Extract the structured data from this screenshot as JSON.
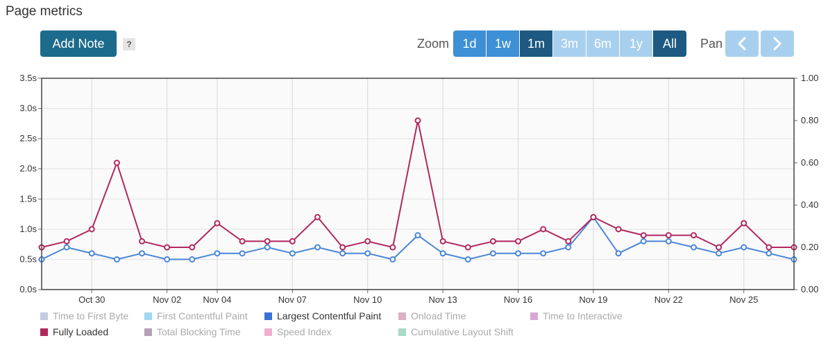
{
  "header": {
    "title": "Page metrics"
  },
  "toolbar": {
    "add_note_label": "Add Note",
    "help_label": "?",
    "zoom_label": "Zoom",
    "zoom_options": [
      {
        "label": "1d",
        "state": "enabled"
      },
      {
        "label": "1w",
        "state": "enabled"
      },
      {
        "label": "1m",
        "state": "selected"
      },
      {
        "label": "3m",
        "state": "disabled"
      },
      {
        "label": "6m",
        "state": "disabled"
      },
      {
        "label": "1y",
        "state": "disabled"
      },
      {
        "label": "All",
        "state": "selected"
      }
    ],
    "pan_label": "Pan",
    "pan_left_icon": "chevron-left-icon",
    "pan_right_icon": "chevron-right-icon"
  },
  "colors": {
    "fully_loaded": "#b0285f",
    "largest_contentful_paint": "#4a86d8",
    "button_dark": "#1d6b8c",
    "zoom_blue": "#3d8fd6",
    "zoom_dark": "#1d5980",
    "zoom_light": "#a8d0ee"
  },
  "chart_data": {
    "type": "line",
    "title": "",
    "xlabel": "",
    "ylabel": "",
    "x_tick_labels": [
      "Oct 30",
      "Nov 02",
      "Nov 04",
      "Nov 07",
      "Nov 10",
      "Nov 13",
      "Nov 16",
      "Nov 19",
      "Nov 22",
      "Nov 25"
    ],
    "y_tick_labels": [
      "0.0s",
      "0.5s",
      "1.0s",
      "1.5s",
      "2.0s",
      "2.5s",
      "3.0s",
      "3.5s"
    ],
    "y2_tick_labels": [
      "0.00",
      "0.20",
      "0.40",
      "0.60",
      "0.80",
      "1.00"
    ],
    "ylim": [
      0,
      3.5
    ],
    "y2lim": [
      0,
      1.0
    ],
    "grid": true,
    "legend_position": "bottom",
    "series": [
      {
        "name": "Fully Loaded",
        "color": "#b0285f",
        "values": [
          0.7,
          0.8,
          1.0,
          2.1,
          0.8,
          0.7,
          0.7,
          1.1,
          0.8,
          0.8,
          0.8,
          1.2,
          0.7,
          0.8,
          0.7,
          2.8,
          0.8,
          0.7,
          0.8,
          0.8,
          1.0,
          0.8,
          1.2,
          1.0,
          0.9,
          0.9,
          0.9,
          0.7,
          1.1,
          0.7,
          0.7
        ]
      },
      {
        "name": "Largest Contentful Paint",
        "color": "#4a86d8",
        "values": [
          0.5,
          0.7,
          0.6,
          0.5,
          0.6,
          0.5,
          0.5,
          0.6,
          0.6,
          0.7,
          0.6,
          0.7,
          0.6,
          0.6,
          0.5,
          0.9,
          0.6,
          0.5,
          0.6,
          0.6,
          0.6,
          0.7,
          1.2,
          0.6,
          0.8,
          0.8,
          0.7,
          0.6,
          0.7,
          0.6,
          0.5
        ]
      }
    ]
  },
  "legend": [
    {
      "label": "Time to First Byte",
      "color": "#c5cbe0",
      "active": false
    },
    {
      "label": "First Contentful Paint",
      "color": "#9fd8f0",
      "active": false
    },
    {
      "label": "Largest Contentful Paint",
      "color": "#3a72d6",
      "active": true
    },
    {
      "label": "Onload Time",
      "color": "#ddb0c4",
      "active": false
    },
    {
      "label": "Time to Interactive",
      "color": "#d9a8d9",
      "active": false
    },
    {
      "label": "Fully Loaded",
      "color": "#b0285f",
      "active": true
    },
    {
      "label": "Total Blocking Time",
      "color": "#b3a0b8",
      "active": false
    },
    {
      "label": "Speed Index",
      "color": "#f0b0cf",
      "active": false
    },
    {
      "label": "Cumulative Layout Shift",
      "color": "#a8dcc4",
      "active": false
    }
  ]
}
